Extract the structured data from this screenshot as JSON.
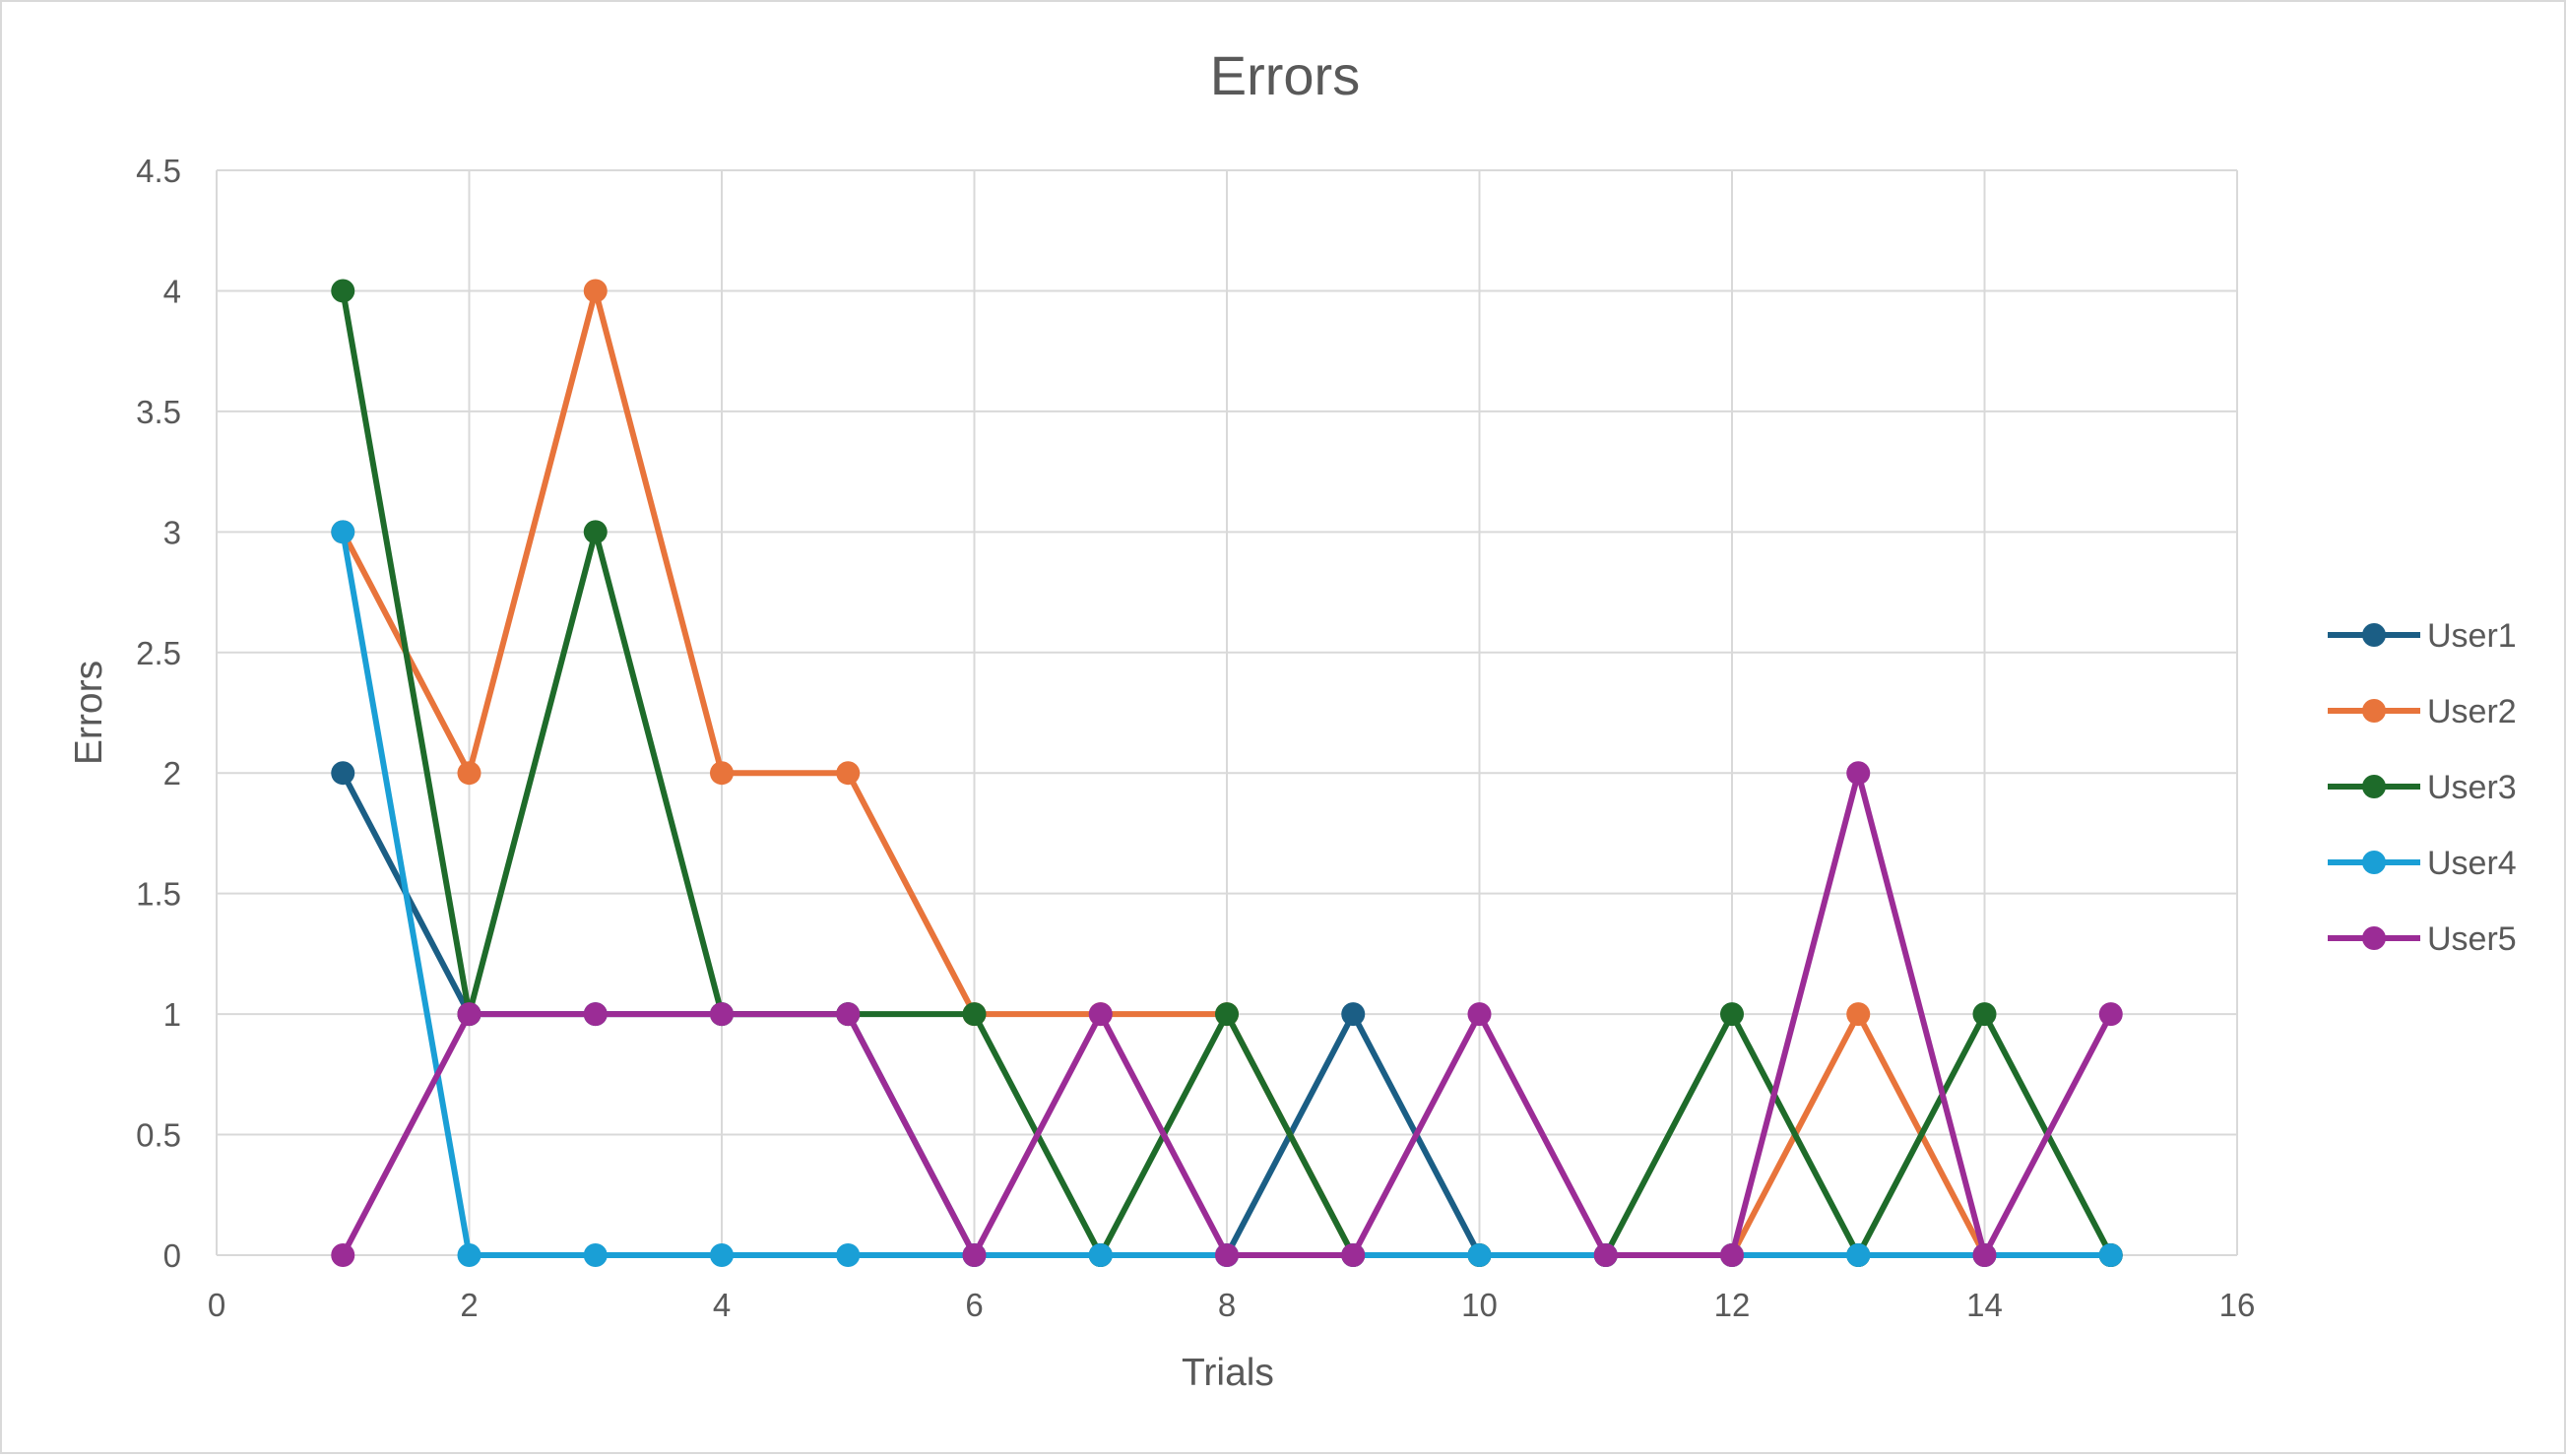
{
  "chart_data": {
    "type": "line",
    "title": "Errors",
    "xlabel": "Trials",
    "ylabel": "Errors",
    "xlim": [
      0,
      16
    ],
    "ylim": [
      0,
      4.5
    ],
    "x_ticks": [
      0,
      2,
      4,
      6,
      8,
      10,
      12,
      14,
      16
    ],
    "y_ticks": [
      0,
      0.5,
      1,
      1.5,
      2,
      2.5,
      3,
      3.5,
      4,
      4.5
    ],
    "grid": true,
    "legend_position": "right",
    "x": [
      1,
      2,
      3,
      4,
      5,
      6,
      7,
      8,
      9,
      10,
      11,
      12,
      13,
      14,
      15
    ],
    "series": [
      {
        "name": "User1",
        "color": "#1b5e85",
        "values": [
          2,
          1,
          1,
          1,
          1,
          0,
          0,
          0,
          1,
          0,
          0,
          0,
          0,
          0,
          0
        ]
      },
      {
        "name": "User2",
        "color": "#e8743b",
        "values": [
          3,
          2,
          4,
          2,
          2,
          1,
          1,
          1,
          0,
          0,
          0,
          0,
          1,
          0,
          0
        ]
      },
      {
        "name": "User3",
        "color": "#1e6b2a",
        "values": [
          4,
          1,
          3,
          1,
          1,
          1,
          0,
          1,
          0,
          0,
          0,
          1,
          0,
          1,
          0
        ]
      },
      {
        "name": "User4",
        "color": "#1a9fd6",
        "values": [
          3,
          0,
          0,
          0,
          0,
          0,
          0,
          0,
          0,
          0,
          0,
          0,
          0,
          0,
          0
        ]
      },
      {
        "name": "User5",
        "color": "#9b2c96",
        "values": [
          0,
          1,
          1,
          1,
          1,
          0,
          1,
          0,
          0,
          1,
          0,
          0,
          2,
          0,
          1
        ]
      }
    ]
  }
}
